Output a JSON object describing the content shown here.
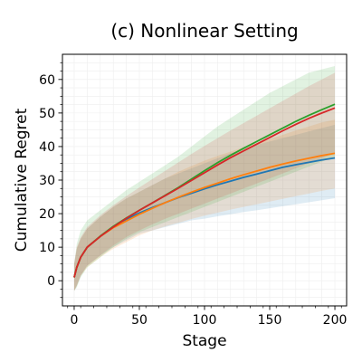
{
  "chart_data": {
    "type": "line",
    "title": "(c) Nonlinear Setting",
    "xlabel": "Stage",
    "ylabel": "Cumulative Regret",
    "xlim": [
      -9,
      209
    ],
    "ylim": [
      -7.5,
      67.5
    ],
    "xticks": [
      0,
      50,
      100,
      150,
      200
    ],
    "yticks": [
      0,
      10,
      20,
      30,
      40,
      50,
      60
    ],
    "grid": true,
    "legend": "none",
    "series": [
      {
        "color": "#1f77b4",
        "x": [
          0,
          2,
          5,
          10,
          20,
          30,
          40,
          50,
          60,
          70,
          80,
          90,
          100,
          110,
          120,
          130,
          140,
          150,
          160,
          170,
          180,
          190,
          200
        ],
        "y": [
          1.0,
          4.0,
          7.0,
          10.0,
          13.2,
          16.0,
          18.3,
          20.2,
          21.8,
          23.3,
          24.8,
          26.1,
          27.4,
          28.6,
          29.7,
          30.8,
          31.8,
          32.8,
          33.8,
          34.6,
          35.3,
          36.0,
          36.6
        ],
        "lower": [
          -3.0,
          -1.5,
          1.5,
          4.5,
          7.5,
          10.0,
          12.0,
          14.0,
          15.0,
          16.0,
          17.0,
          18.0,
          18.5,
          19.2,
          19.8,
          20.5,
          21.0,
          21.6,
          22.2,
          22.8,
          23.4,
          24.0,
          24.6
        ],
        "upper": [
          5.0,
          9.5,
          12.5,
          15.5,
          19.0,
          22.0,
          24.5,
          26.5,
          28.5,
          30.5,
          32.0,
          33.5,
          35.0,
          36.5,
          38.0,
          39.3,
          40.5,
          41.5,
          42.5,
          43.5,
          44.5,
          45.5,
          46.5
        ]
      },
      {
        "color": "#ff7f0e",
        "x": [
          0,
          2,
          5,
          10,
          20,
          30,
          40,
          50,
          60,
          70,
          80,
          90,
          100,
          110,
          120,
          130,
          140,
          150,
          160,
          170,
          180,
          190,
          200
        ],
        "y": [
          1.0,
          4.0,
          7.0,
          10.0,
          13.2,
          15.8,
          17.8,
          19.8,
          21.6,
          23.3,
          24.9,
          26.4,
          27.8,
          29.1,
          30.4,
          31.6,
          32.7,
          33.8,
          34.8,
          35.7,
          36.5,
          37.3,
          38.0
        ],
        "lower": [
          -3.0,
          -1.5,
          1.5,
          4.0,
          7.0,
          9.5,
          11.5,
          13.5,
          15.0,
          16.2,
          17.3,
          18.4,
          19.4,
          20.3,
          21.2,
          22.0,
          22.8,
          23.6,
          24.4,
          25.2,
          26.0,
          26.8,
          27.5
        ],
        "upper": [
          5.0,
          9.5,
          12.5,
          15.5,
          19.0,
          22.0,
          24.5,
          26.5,
          28.5,
          30.5,
          32.5,
          34.2,
          35.8,
          37.2,
          38.5,
          39.8,
          41.0,
          42.2,
          43.5,
          44.8,
          46.0,
          47.2,
          48.0
        ]
      },
      {
        "color": "#2ca02c",
        "x": [
          0,
          2,
          5,
          10,
          20,
          30,
          40,
          50,
          60,
          70,
          80,
          90,
          100,
          110,
          120,
          130,
          140,
          150,
          160,
          170,
          180,
          190,
          200
        ],
        "y": [
          1.0,
          4.0,
          7.0,
          10.0,
          13.3,
          16.2,
          18.7,
          21.0,
          23.2,
          25.5,
          27.8,
          30.3,
          32.8,
          35.2,
          37.4,
          39.5,
          41.5,
          43.5,
          45.5,
          47.5,
          49.3,
          51.0,
          52.6
        ],
        "lower": [
          -3.0,
          -2.0,
          1.0,
          4.0,
          7.0,
          10.0,
          12.5,
          14.5,
          16.0,
          17.5,
          19.0,
          20.5,
          22.0,
          23.5,
          25.0,
          26.5,
          28.0,
          29.5,
          31.0,
          32.5,
          34.0,
          35.5,
          37.0
        ],
        "upper": [
          5.0,
          11.0,
          15.0,
          18.0,
          21.0,
          24.0,
          27.0,
          29.5,
          32.0,
          34.5,
          37.0,
          40.0,
          43.0,
          46.0,
          48.5,
          51.0,
          53.5,
          56.0,
          58.0,
          60.0,
          62.0,
          63.0,
          64.0
        ]
      },
      {
        "color": "#d62728",
        "x": [
          0,
          2,
          5,
          10,
          20,
          30,
          40,
          50,
          60,
          70,
          80,
          90,
          100,
          110,
          120,
          130,
          140,
          150,
          160,
          170,
          180,
          190,
          200
        ],
        "y": [
          1.0,
          4.0,
          7.0,
          10.0,
          13.2,
          16.0,
          18.6,
          21.0,
          23.2,
          25.4,
          27.6,
          29.9,
          32.2,
          34.5,
          36.7,
          38.7,
          40.7,
          42.7,
          44.7,
          46.6,
          48.4,
          50.0,
          51.5
        ],
        "lower": [
          -3.0,
          -1.5,
          1.5,
          4.5,
          7.5,
          10.5,
          13.0,
          15.0,
          16.8,
          18.5,
          20.0,
          21.5,
          23.0,
          24.5,
          26.0,
          27.5,
          29.0,
          30.5,
          32.0,
          33.5,
          35.0,
          36.5,
          38.0
        ],
        "upper": [
          5.0,
          10.0,
          13.0,
          16.0,
          19.5,
          22.5,
          25.2,
          27.8,
          30.3,
          32.8,
          35.3,
          37.8,
          40.2,
          42.5,
          44.8,
          47.0,
          49.2,
          51.4,
          53.6,
          55.8,
          58.0,
          60.0,
          62.0
        ]
      }
    ]
  }
}
